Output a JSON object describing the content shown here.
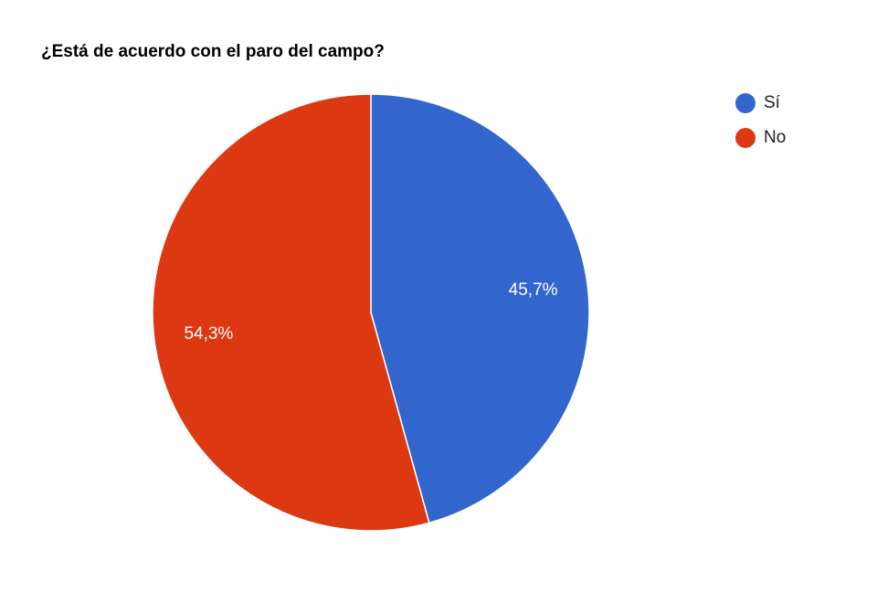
{
  "chart_data": {
    "type": "pie",
    "title": "¿Está de acuerdo con el paro del campo?",
    "categories": [
      "Sí",
      "No"
    ],
    "values": [
      45.7,
      54.3
    ],
    "value_labels": [
      "45,7%",
      "54,3%"
    ],
    "colors": [
      "#3366cc",
      "#dc3912"
    ],
    "legend": "right"
  }
}
